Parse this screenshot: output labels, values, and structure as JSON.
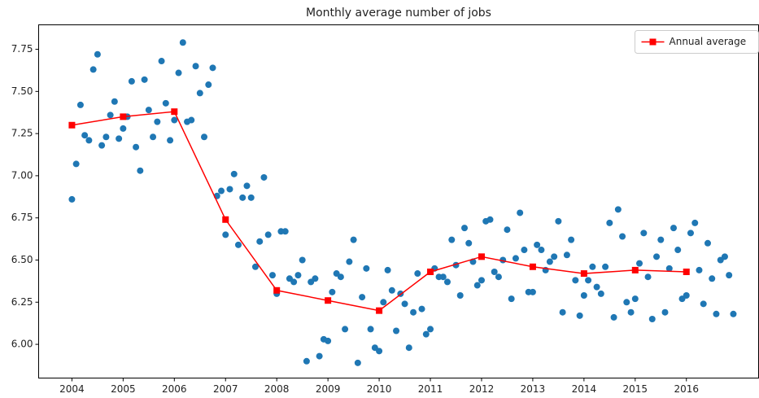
{
  "chart_data": {
    "type": "scatter",
    "title": "Monthly average number of jobs",
    "xlim": [
      2003.35,
      2017.41
    ],
    "ylim": [
      5.8,
      7.895
    ],
    "xticks": [
      2004,
      2005,
      2006,
      2007,
      2008,
      2009,
      2010,
      2011,
      2012,
      2013,
      2014,
      2015,
      2016
    ],
    "yticks": [
      {
        "value": 6.0,
        "label": "6.00"
      },
      6.25,
      {
        "value": 6.5,
        "label": "6.50"
      },
      6.75,
      {
        "value": 7.0,
        "label": "7.00"
      },
      7.25,
      {
        "value": 7.5,
        "label": "7.50"
      },
      7.75
    ],
    "legend": "upper right",
    "series": [
      {
        "type": "scatter",
        "color": "#1f77b4",
        "x": [
          2004,
          2004.083,
          2004.167,
          2004.25,
          2004.333,
          2004.417,
          2004.5,
          2004.583,
          2004.667,
          2004.75,
          2004.833,
          2004.917,
          2005,
          2005.083,
          2005.167,
          2005.25,
          2005.333,
          2005.417,
          2005.5,
          2005.583,
          2005.667,
          2005.75,
          2005.833,
          2005.917,
          2006,
          2006.083,
          2006.167,
          2006.25,
          2006.333,
          2006.417,
          2006.5,
          2006.583,
          2006.667,
          2006.75,
          2006.833,
          2006.917,
          2007,
          2007.083,
          2007.167,
          2007.25,
          2007.333,
          2007.417,
          2007.5,
          2007.583,
          2007.667,
          2007.75,
          2007.833,
          2007.917,
          2008,
          2008.083,
          2008.167,
          2008.25,
          2008.333,
          2008.417,
          2008.5,
          2008.583,
          2008.667,
          2008.75,
          2008.833,
          2008.917,
          2009,
          2009.083,
          2009.167,
          2009.25,
          2009.333,
          2009.417,
          2009.5,
          2009.583,
          2009.667,
          2009.75,
          2009.833,
          2009.917,
          2010,
          2010.083,
          2010.167,
          2010.25,
          2010.333,
          2010.417,
          2010.5,
          2010.583,
          2010.667,
          2010.75,
          2010.833,
          2010.917,
          2011,
          2011.083,
          2011.167,
          2011.25,
          2011.333,
          2011.417,
          2011.5,
          2011.583,
          2011.667,
          2011.75,
          2011.833,
          2011.917,
          2012,
          2012.083,
          2012.167,
          2012.25,
          2012.333,
          2012.417,
          2012.5,
          2012.583,
          2012.667,
          2012.75,
          2012.833,
          2012.917,
          2013,
          2013.083,
          2013.167,
          2013.25,
          2013.333,
          2013.417,
          2013.5,
          2013.583,
          2013.667,
          2013.75,
          2013.833,
          2013.917,
          2014,
          2014.083,
          2014.167,
          2014.25,
          2014.333,
          2014.417,
          2014.5,
          2014.583,
          2014.667,
          2014.75,
          2014.833,
          2014.917,
          2015,
          2015.083,
          2015.167,
          2015.25,
          2015.333,
          2015.417,
          2015.5,
          2015.583,
          2015.667,
          2015.75,
          2015.833,
          2015.917,
          2016,
          2016.083,
          2016.167,
          2016.25,
          2016.333,
          2016.417,
          2016.5,
          2016.583,
          2016.667,
          2016.75,
          2016.833,
          2016.917
        ],
        "values": [
          6.86,
          7.07,
          7.42,
          7.24,
          7.21,
          7.63,
          7.72,
          7.18,
          7.23,
          7.36,
          7.44,
          7.22,
          7.28,
          7.35,
          7.56,
          7.17,
          7.03,
          7.57,
          7.39,
          7.23,
          7.32,
          7.68,
          7.43,
          7.21,
          7.33,
          7.61,
          7.79,
          7.32,
          7.33,
          7.65,
          7.49,
          7.23,
          7.54,
          7.64,
          6.88,
          6.91,
          6.65,
          6.92,
          7.01,
          6.59,
          6.87,
          6.94,
          6.87,
          6.46,
          6.61,
          6.99,
          6.65,
          6.41,
          6.3,
          6.67,
          6.67,
          6.39,
          6.37,
          6.41,
          6.5,
          5.9,
          6.37,
          6.39,
          5.93,
          6.03,
          6.02,
          6.31,
          6.42,
          6.4,
          6.09,
          6.49,
          6.62,
          5.89,
          6.28,
          6.45,
          6.09,
          5.98,
          5.96,
          6.25,
          6.44,
          6.32,
          6.08,
          6.3,
          6.24,
          5.98,
          6.19,
          6.42,
          6.21,
          6.06,
          6.09,
          6.45,
          6.4,
          6.4,
          6.37,
          6.62,
          6.47,
          6.29,
          6.69,
          6.6,
          6.49,
          6.35,
          6.38,
          6.73,
          6.74,
          6.43,
          6.4,
          6.5,
          6.68,
          6.27,
          6.51,
          6.78,
          6.56,
          6.31,
          6.31,
          6.59,
          6.56,
          6.44,
          6.49,
          6.52,
          6.73,
          6.19,
          6.53,
          6.62,
          6.38,
          6.17,
          6.29,
          6.38,
          6.46,
          6.34,
          6.3,
          6.46,
          6.72,
          6.16,
          6.8,
          6.64,
          6.25,
          6.19,
          6.27,
          6.48,
          6.66,
          6.4,
          6.15,
          6.52,
          6.62,
          6.19,
          6.45,
          6.69,
          6.56,
          6.27,
          6.29,
          6.66,
          6.72,
          6.44,
          6.24,
          6.6,
          6.39,
          6.18,
          6.5,
          6.52,
          6.41,
          6.18
        ]
      },
      {
        "type": "line",
        "name": "Annual average",
        "color": "#ff0000",
        "x": [
          2004,
          2005,
          2006,
          2007,
          2008,
          2009,
          2010,
          2011,
          2012,
          2013,
          2014,
          2015,
          2016
        ],
        "values": [
          7.3,
          7.35,
          7.38,
          6.74,
          6.32,
          6.26,
          6.2,
          6.43,
          6.52,
          6.46,
          6.42,
          6.44,
          6.43
        ]
      }
    ]
  }
}
